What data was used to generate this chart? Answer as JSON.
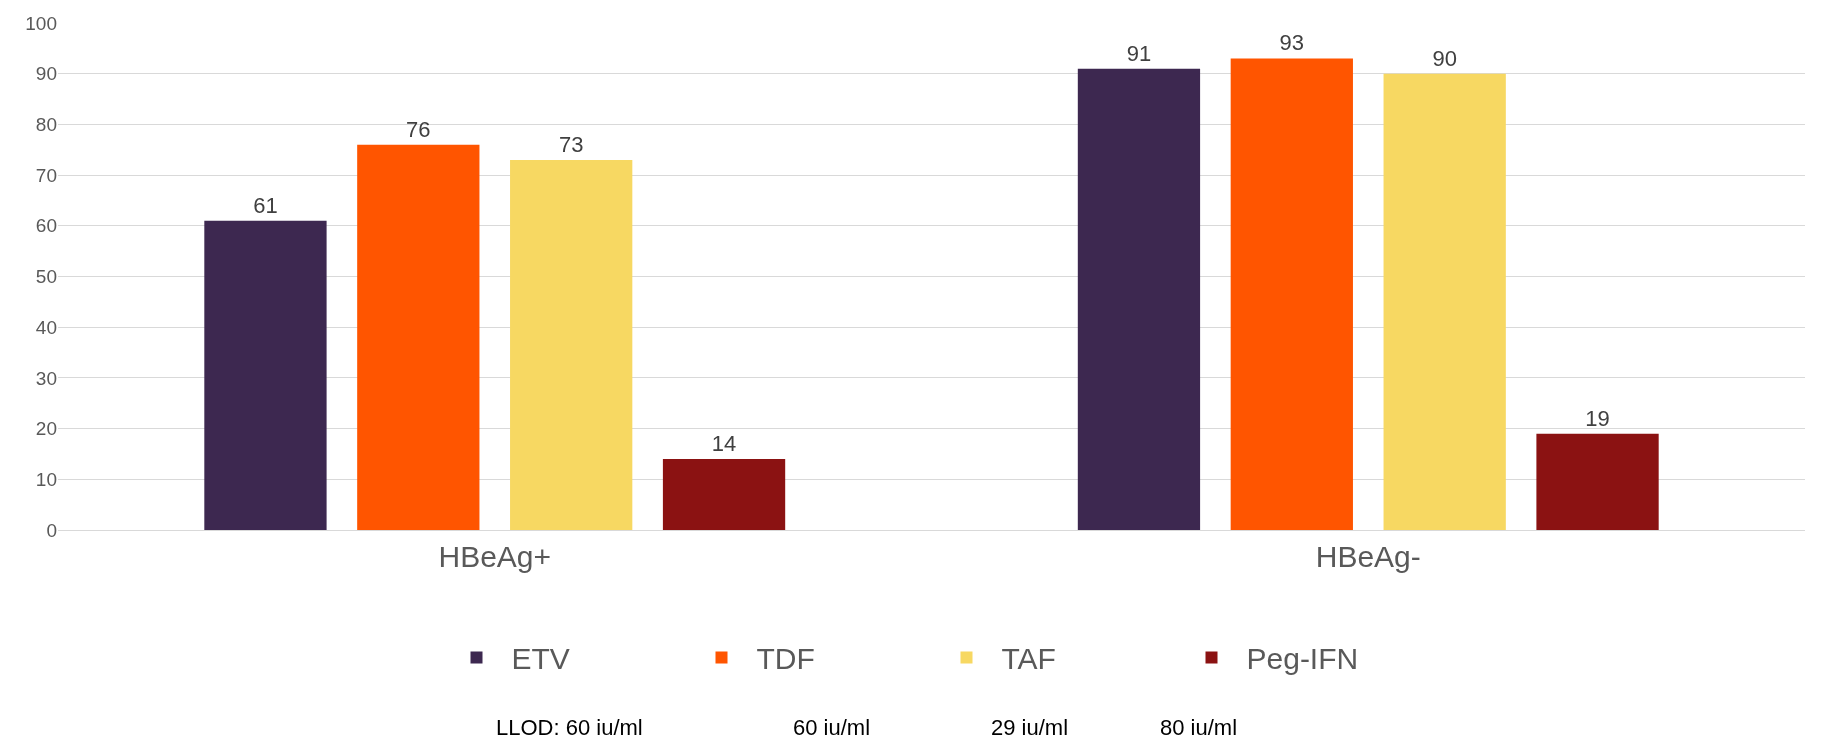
{
  "chart_data": {
    "type": "bar",
    "categories": [
      "HBeAg+",
      "HBeAg-"
    ],
    "series": [
      {
        "name": "ETV",
        "color": "#3d2850",
        "values": [
          61,
          91
        ]
      },
      {
        "name": "TDF",
        "color": "#ff5500",
        "values": [
          76,
          93
        ]
      },
      {
        "name": "TAF",
        "color": "#f7d862",
        "values": [
          73,
          90
        ]
      },
      {
        "name": "Peg-IFN",
        "color": "#8b1212",
        "values": [
          14,
          19
        ]
      }
    ],
    "ylim": [
      0,
      100
    ],
    "yticks": [
      0,
      10,
      20,
      30,
      40,
      50,
      60,
      70,
      80,
      90,
      100
    ],
    "grid": "y",
    "legend": "bottom",
    "data_labels": true,
    "annotations": [
      "LLOD: 60 iu/ml",
      "60 iu/ml",
      "29 iu/ml",
      "80 iu/ml"
    ]
  }
}
